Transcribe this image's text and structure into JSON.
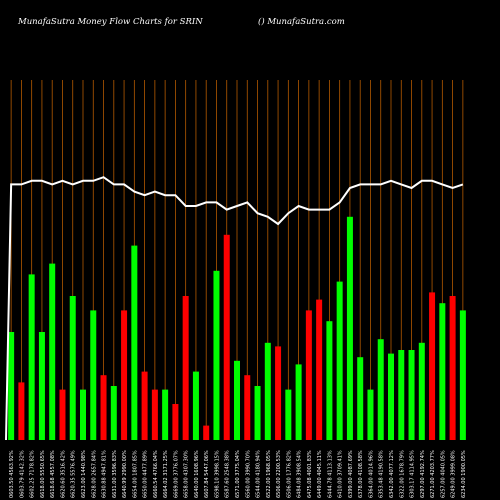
{
  "header": {
    "title": "MunafaSutra  Money Flow  Charts for SRIN",
    "site": "() MunafaSutra.com"
  },
  "colors": {
    "background": "#000000",
    "up": "#00ff00",
    "down": "#ff0000",
    "grid": "#b35900",
    "price_line": "#ffffff"
  },
  "chart_data": {
    "type": "bar",
    "title": "MunafaSutra  Money Flow  Charts for SRIN",
    "grid": true,
    "bar_ylim": [
      0,
      100
    ],
    "price_ylim": [
      0,
      100
    ],
    "categories": [
      "0603.50 4563.92%",
      "0603.79 4142.32%",
      "6602.25 7178.82%",
      "6618.00 5550.65%",
      "6618.68 4557.08%",
      "6620.60 3516.42%",
      "6620.35 5576.49%",
      "6623.00 1440.98%",
      "6628.00 2657.84%",
      "6630.88 4947.81%",
      "6631.00 3596.83%",
      "6640.99 2990.00%",
      "6654.00 1807.85%",
      "6650.00 4477.89%",
      "6660.54 4766.04%",
      "6664.02 3171.25%",
      "6669.00 3776.07%",
      "6658.00 4307.30%",
      "6640.00 1608.96%",
      "6607.84 5447.06%",
      "6598.10 3998.15%",
      "6587.60 2548.38%",
      "6571.00 3775.04%",
      "6560.00 3990.70%",
      "6544.00 4180.94%",
      "6522.00 1968.05%",
      "6506.00 2200.53%",
      "6506.00 1776.82%",
      "6484.08 3908.54%",
      "6475.08 4001.83%",
      "6449.00 4045.11%",
      "6444.78 4113.13%",
      "6410.00 3709.41%",
      "6399.00 4087.69%",
      "6378.00 4108.58%",
      "6364.00 4014.96%",
      "6353.48 4190.58%",
      "6342.00 4077.12%",
      "6322.00 1678.79%",
      "6303.17 4114.95%",
      "6297.00 4192.74%",
      "6271.00 4203.77%",
      "6257.00 4040.05%",
      "6249.00 3999.08%",
      "6234.00 1900.05%"
    ],
    "series": [
      {
        "type": "bar",
        "values": [
          30,
          16,
          46,
          30,
          49,
          14,
          40,
          14,
          36,
          18,
          15,
          36,
          54,
          19,
          14,
          14,
          10,
          40,
          19,
          4,
          47,
          57,
          22,
          18,
          15,
          27,
          26,
          14,
          21,
          36,
          39,
          33,
          44,
          62,
          23,
          14,
          28,
          24,
          25,
          25,
          27,
          41,
          38,
          40,
          36
        ],
        "colors": [
          "up",
          "down",
          "up",
          "up",
          "up",
          "down",
          "up",
          "up",
          "up",
          "down",
          "up",
          "down",
          "up",
          "down",
          "down",
          "up",
          "down",
          "down",
          "up",
          "down",
          "up",
          "down",
          "up",
          "down",
          "up",
          "up",
          "down",
          "up",
          "up",
          "down",
          "down",
          "up",
          "up",
          "up",
          "up",
          "up",
          "up",
          "up",
          "up",
          "up",
          "up",
          "down",
          "up",
          "down",
          "up"
        ]
      },
      {
        "type": "line",
        "values": [
          71,
          71,
          72,
          72,
          71,
          72,
          71,
          72,
          72,
          73,
          71,
          71,
          69,
          68,
          69,
          68,
          68,
          65,
          65,
          66,
          66,
          64,
          65,
          66,
          63,
          62,
          60,
          63,
          65,
          64,
          64,
          64,
          66,
          70,
          71,
          71,
          71,
          72,
          71,
          70,
          72,
          72,
          71,
          70,
          71
        ]
      }
    ]
  }
}
